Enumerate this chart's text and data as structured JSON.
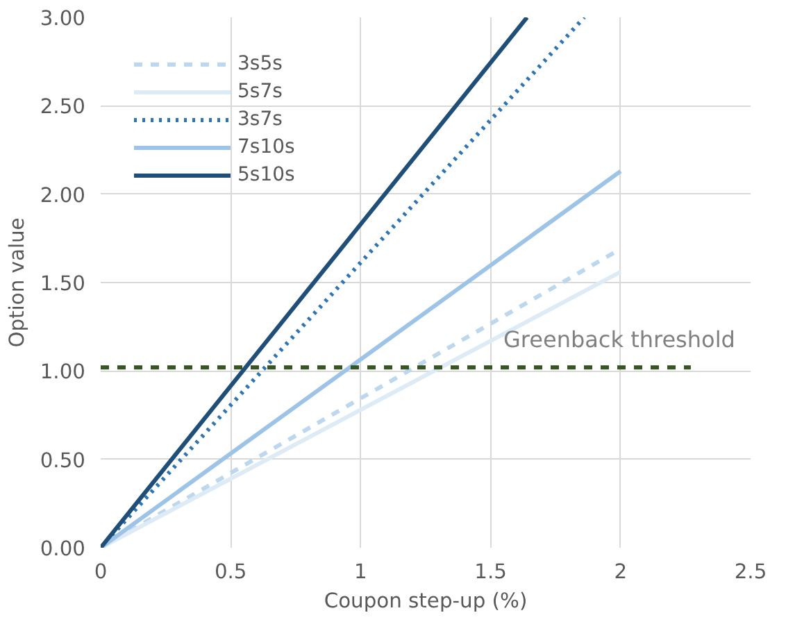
{
  "chart_data": {
    "type": "line",
    "xlabel": "Coupon step-up (%)",
    "ylabel": "Option value",
    "xlim": [
      0,
      2.5
    ],
    "ylim": [
      0,
      3
    ],
    "xticks": [
      0,
      0.5,
      1,
      1.5,
      2,
      2.5
    ],
    "yticks": [
      {
        "value": 0,
        "label": "0.00"
      },
      {
        "value": 0.5,
        "label": "0.50"
      },
      {
        "value": 1,
        "label": "1.00"
      },
      {
        "value": 1.5,
        "label": "1.50"
      },
      {
        "value": 2,
        "label": "2.00"
      },
      {
        "value": 2.5,
        "label": "2.50"
      },
      {
        "value": 3,
        "label": "3.00"
      }
    ],
    "grid": true,
    "legend": "top left",
    "marker": "none",
    "series": [
      {
        "name": "3s5s",
        "color": "#bdd7ee",
        "line_style": "dashed",
        "x": [
          0,
          2
        ],
        "values": [
          0,
          1.69
        ]
      },
      {
        "name": "5s7s",
        "color": "#ddebf7",
        "line_style": "solid",
        "x": [
          0,
          2
        ],
        "values": [
          0,
          1.56
        ]
      },
      {
        "name": "3s7s",
        "color": "#2e75b6",
        "line_style": "dotted",
        "x": [
          0,
          1.86
        ],
        "values": [
          0,
          3.0
        ]
      },
      {
        "name": "7s10s",
        "color": "#9dc3e6",
        "line_style": "solid",
        "x": [
          0,
          2
        ],
        "values": [
          0,
          2.13
        ]
      },
      {
        "name": "5s10s",
        "color": "#1f4e79",
        "line_style": "solid",
        "x": [
          0,
          1.64
        ],
        "values": [
          0,
          3.0
        ]
      },
      {
        "color": "#375623",
        "line_style": "dashed",
        "x": [
          0,
          2.27
        ],
        "values": [
          1.02,
          1.02
        ]
      }
    ],
    "annotations": [
      "Greenback threshold"
    ]
  }
}
